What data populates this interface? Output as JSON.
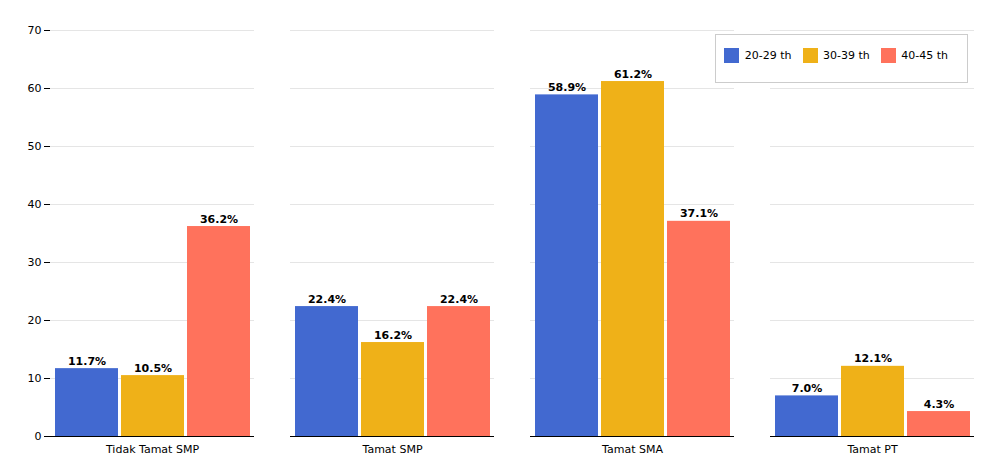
{
  "chart_data": {
    "type": "bar",
    "categories": [
      "Tidak Tamat SMP",
      "Tamat SMP",
      "Tamat SMA",
      "Tamat PT"
    ],
    "series": [
      {
        "name": "20-29 th",
        "values": [
          11.7,
          22.4,
          58.9,
          7.0
        ],
        "value_labels": [
          "11.7%",
          "22.4%",
          "58.9%",
          "7.0%"
        ]
      },
      {
        "name": "30-39 th",
        "values": [
          10.5,
          16.2,
          61.2,
          12.1
        ],
        "value_labels": [
          "10.5%",
          "16.2%",
          "61.2%",
          "12.1%"
        ]
      },
      {
        "name": "40-45 th",
        "values": [
          36.2,
          22.4,
          37.1,
          4.3
        ],
        "value_labels": [
          "36.2%",
          "22.4%",
          "37.1%",
          "4.3%"
        ]
      }
    ],
    "ylim": [
      0,
      70
    ],
    "yticks": [
      0,
      10,
      20,
      30,
      40,
      50,
      60,
      70
    ],
    "grid": true,
    "legend": "upper right",
    "data_labels": true
  }
}
